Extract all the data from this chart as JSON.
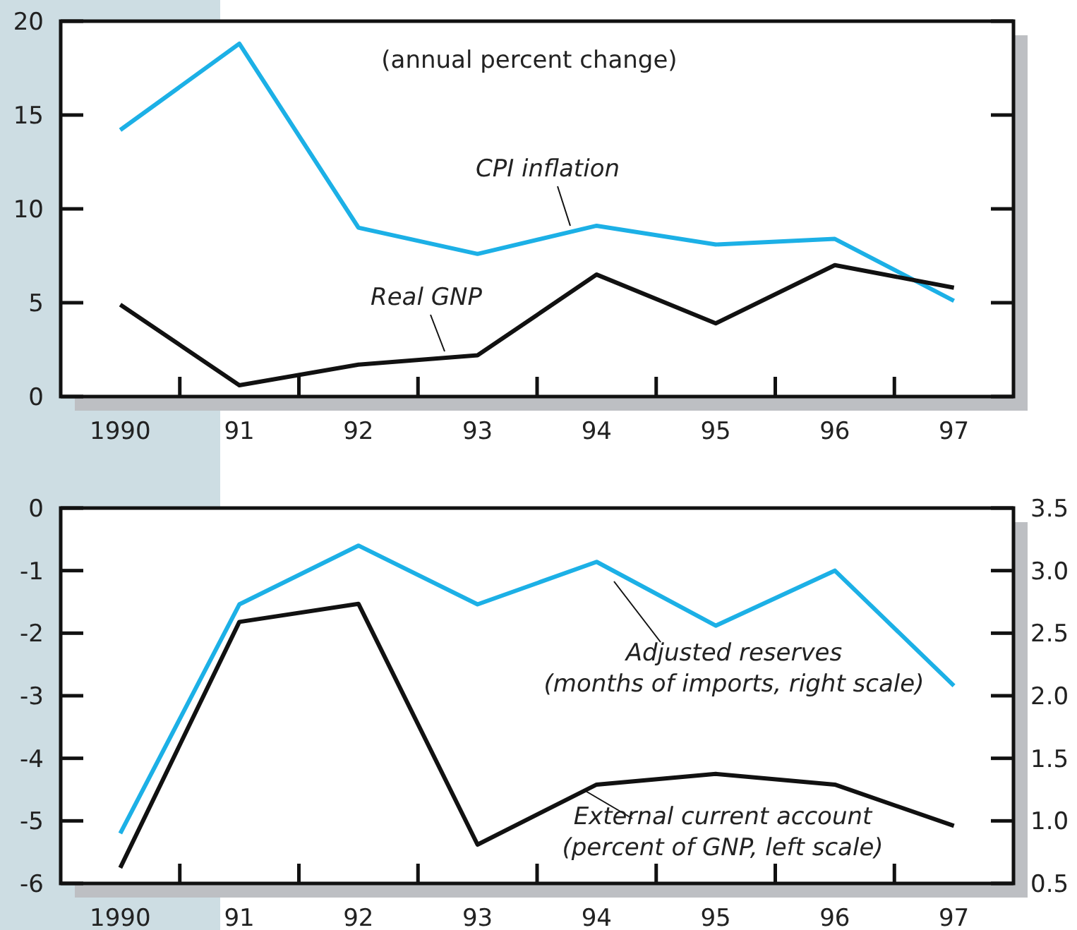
{
  "chart_data": [
    {
      "type": "line",
      "categories": [
        "1990",
        "91",
        "92",
        "93",
        "94",
        "95",
        "96",
        "97"
      ],
      "ylim": [
        0,
        20
      ],
      "yticks": [
        0,
        5,
        10,
        15,
        20
      ],
      "grid": false,
      "marker": "none",
      "line_style": "solid",
      "annotations": [
        "(annual percent change)"
      ],
      "series": [
        {
          "name": "CPI inflation",
          "color": "#1cb0e6",
          "values": [
            14.2,
            18.8,
            9.0,
            7.6,
            9.1,
            8.1,
            8.4,
            5.1
          ]
        },
        {
          "name": "Real GNP",
          "color": "#111111",
          "values": [
            4.9,
            0.6,
            1.7,
            2.2,
            6.5,
            3.9,
            7.0,
            5.8
          ]
        }
      ]
    },
    {
      "type": "line",
      "categories": [
        "1990",
        "91",
        "92",
        "93",
        "94",
        "95",
        "96",
        "97"
      ],
      "ylim": [
        -6,
        0
      ],
      "yticks": [
        -6,
        -5,
        -4,
        -3,
        -2,
        -1,
        0
      ],
      "y2lim": [
        0.5,
        3.5
      ],
      "y2ticks": [
        0.5,
        {
          "value": 1,
          "label": "1.0"
        },
        1.5,
        {
          "value": 2,
          "label": "2.0"
        },
        2.5,
        {
          "value": 3,
          "label": "3.0"
        },
        3.5
      ],
      "grid": false,
      "marker": "none",
      "line_style": "solid",
      "annotations": [
        "(months of imports, right scale)",
        "(percent of GNP, left scale)"
      ],
      "series": [
        {
          "name": "Adjusted reserves",
          "color": "#1cb0e6",
          "axis": "y2",
          "values": [
            0.9,
            2.73,
            3.2,
            2.73,
            3.07,
            2.56,
            3.0,
            2.08
          ]
        },
        {
          "name": "External current account",
          "color": "#111111",
          "values": [
            -5.75,
            -1.82,
            -1.53,
            -5.38,
            -4.42,
            -4.25,
            -4.42,
            -5.08
          ]
        }
      ]
    }
  ]
}
